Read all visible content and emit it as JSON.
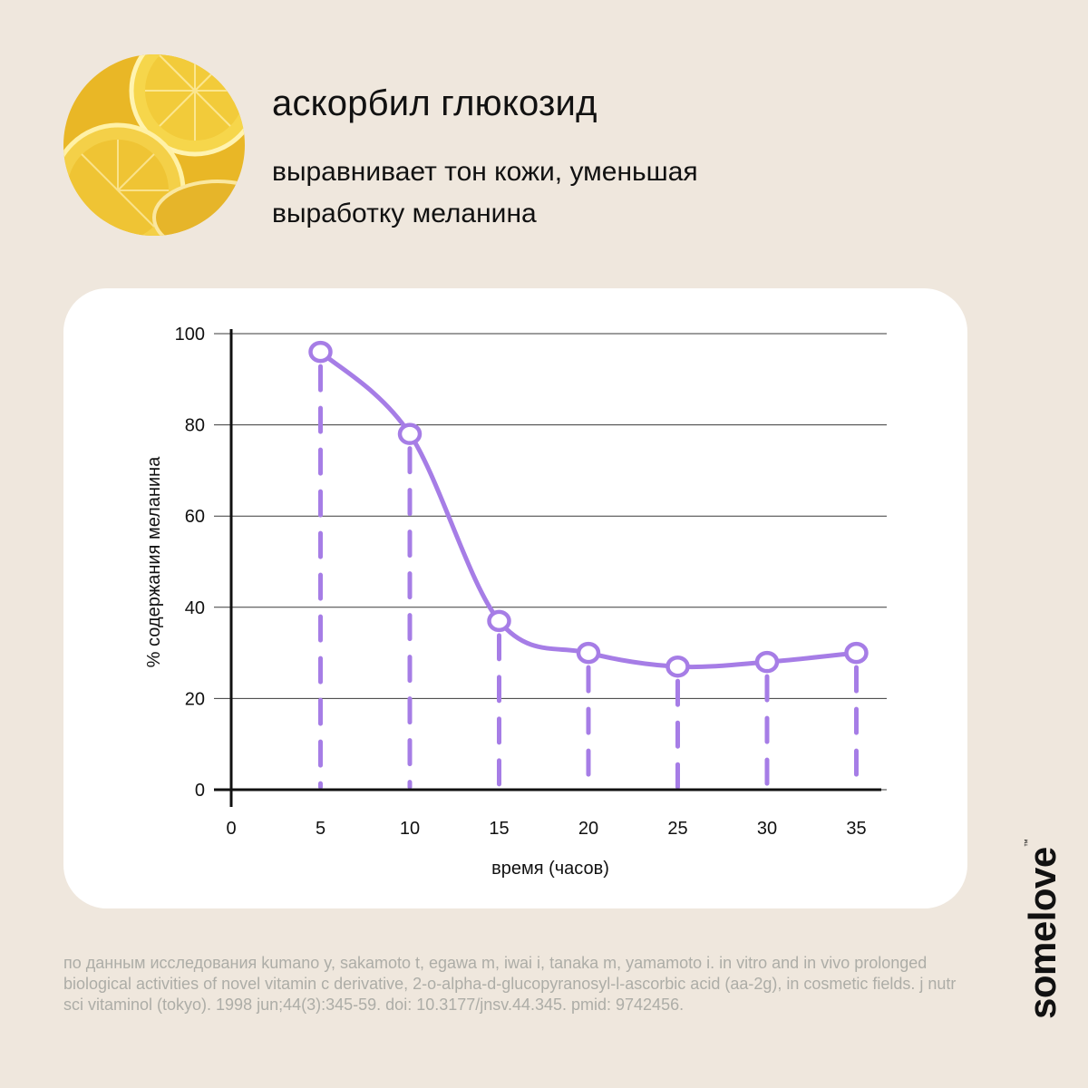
{
  "header": {
    "title": "аскорбил глюкозид",
    "subtitle": "выравнивает тон кожи, уменьшая выработку меланина"
  },
  "chart_data": {
    "type": "line",
    "title": "",
    "xlabel": "время (часов)",
    "ylabel": "% содержания меланина",
    "x": [
      5,
      10,
      15,
      20,
      25,
      30,
      35
    ],
    "series": [
      {
        "name": "меланин",
        "values": [
          96,
          78,
          37,
          30,
          27,
          28,
          30
        ]
      }
    ],
    "xlim": [
      0,
      35
    ],
    "ylim": [
      0,
      100
    ],
    "xticks": [
      0,
      5,
      10,
      15,
      20,
      25,
      30,
      35
    ],
    "yticks": [
      0,
      20,
      40,
      60,
      80,
      100
    ],
    "grid": true,
    "line_color": "#a67de6"
  },
  "citation": "по данным исследования kumano y, sakamoto t, egawa m, iwai i, tanaka m, yamamoto i. in vitro and in vivo prolonged biological activities of novel vitamin c derivative, 2-o-alpha-d-glucopyranosyl-l-ascorbic acid (aa-2g), in cosmetic fields. j nutr sci vitaminol (tokyo). 1998 jun;44(3):345-59. doi: 10.3177/jnsv.44.345. pmid: 9742456.",
  "brand": {
    "name": "somelove",
    "mark": "™"
  },
  "colors": {
    "background": "#efe7dd",
    "card": "#ffffff",
    "accent": "#a67de6",
    "citation": "#adada7"
  }
}
